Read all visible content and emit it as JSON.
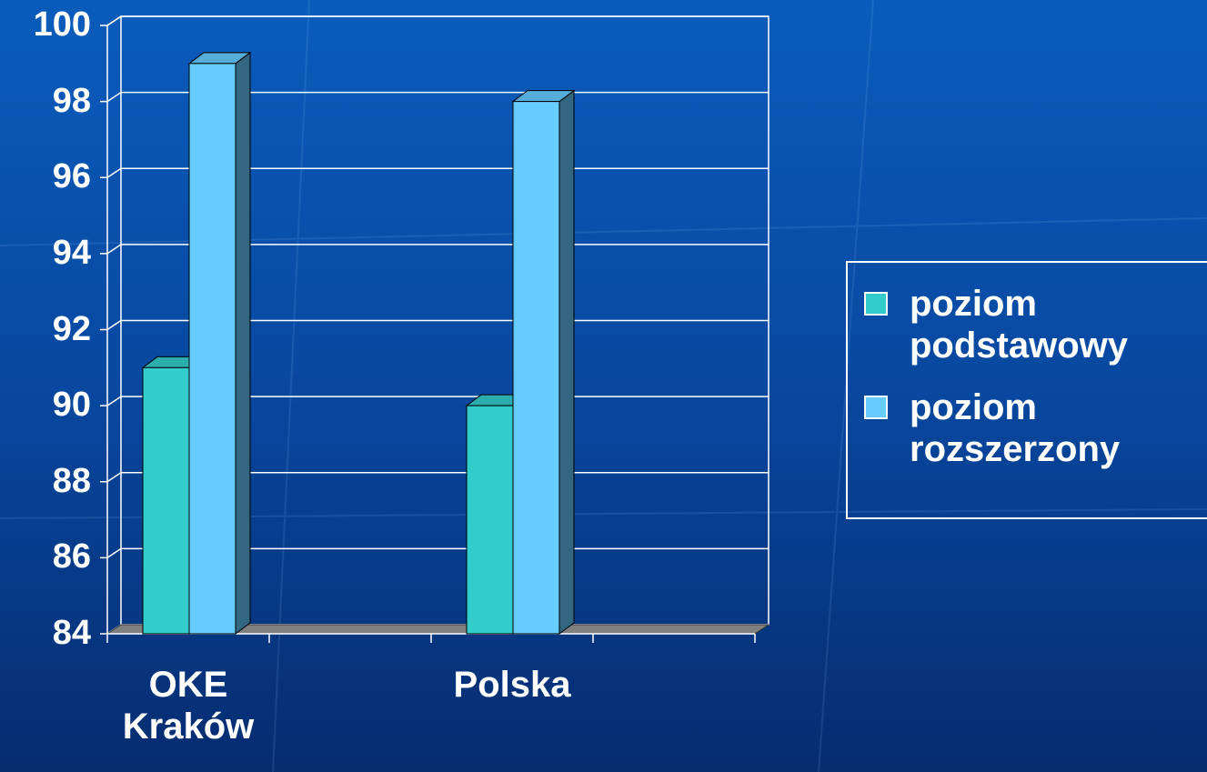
{
  "chart_data": {
    "type": "bar3d",
    "categories": [
      "OKE Kraków",
      null,
      "Polska",
      null
    ],
    "series": [
      {
        "name": "poziom podstawowy",
        "color": "#33cccc",
        "values": [
          91,
          null,
          90,
          null
        ]
      },
      {
        "name": "poziom rozszerzony",
        "color": "#66ccff",
        "values": [
          99,
          null,
          98,
          null
        ]
      }
    ],
    "ylim": [
      84,
      100
    ],
    "yticks": [
      84,
      86,
      88,
      90,
      92,
      94,
      96,
      98,
      100
    ],
    "grid": true,
    "legend": "right"
  }
}
